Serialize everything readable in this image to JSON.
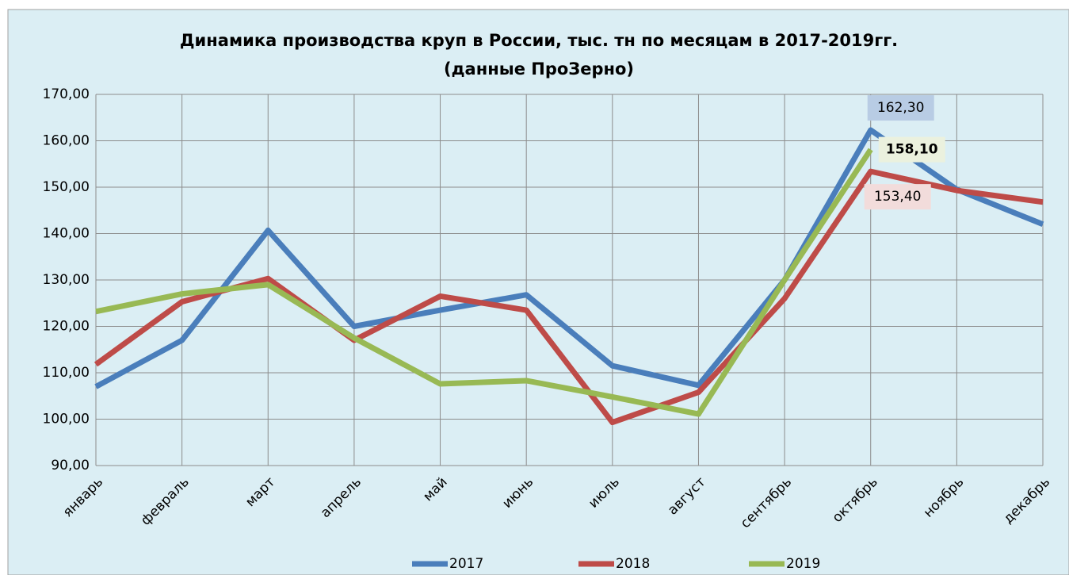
{
  "chart_data": {
    "type": "line",
    "title": "Динамика производства круп в России, тыс. тн  по месяцам в 2017-2019гг.",
    "subtitle": "(данные ПроЗерно)",
    "categories": [
      "январь",
      "февраль",
      "март",
      "апрель",
      "май",
      "июнь",
      "июль",
      "август",
      "сентябрь",
      "октябрь",
      "ноябрь",
      "декабрь"
    ],
    "series": [
      {
        "name": "2017",
        "color": "#4a7ebb",
        "values": [
          107,
          117,
          140.7,
          120,
          123.5,
          126.8,
          111.5,
          107.3,
          130,
          162.3,
          149.5,
          142
        ],
        "value_labels": [
          null,
          null,
          null,
          null,
          null,
          null,
          null,
          null,
          null,
          "162,30",
          null,
          null
        ]
      },
      {
        "name": "2018",
        "color": "#be4b48",
        "values": [
          111.8,
          125.3,
          130.3,
          117,
          126.5,
          123.5,
          99.3,
          105.8,
          126,
          153.4,
          149.3,
          146.8
        ],
        "value_labels": [
          null,
          null,
          null,
          null,
          null,
          null,
          null,
          null,
          null,
          "153,40",
          null,
          null
        ]
      },
      {
        "name": "2019",
        "color": "#98b954",
        "values": [
          123.2,
          127,
          129,
          117.5,
          107.6,
          108.3,
          104.8,
          101.1,
          130,
          158.1,
          null,
          null
        ],
        "value_labels": [
          null,
          null,
          null,
          null,
          null,
          null,
          null,
          null,
          null,
          "158,10",
          null,
          null
        ]
      }
    ],
    "ylim": [
      90,
      170
    ],
    "yticks": [
      {
        "value": 90,
        "label": "90,00"
      },
      {
        "value": 100,
        "label": "100,00"
      },
      {
        "value": 110,
        "label": "110,00"
      },
      {
        "value": 120,
        "label": "120,00"
      },
      {
        "value": 130,
        "label": "130,00"
      },
      {
        "value": 140,
        "label": "140,00"
      },
      {
        "value": 150,
        "label": "150,00"
      },
      {
        "value": 160,
        "label": "160,00"
      },
      {
        "value": 170,
        "label": "170,00"
      }
    ],
    "grid": true,
    "legend": "bottom"
  }
}
